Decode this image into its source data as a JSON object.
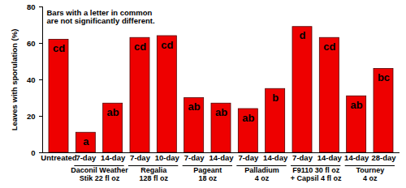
{
  "chart_data": {
    "type": "bar",
    "y_label": "Leaves with sporulation (%)",
    "annotation": "Bars with a letter in common\nare not significantly different.",
    "categories": [
      "Untreated",
      "7-day",
      "14-day",
      "7-day",
      "10-day",
      "7-day",
      "14-day",
      "7-day",
      "14-day",
      "7-day",
      "14-day",
      "14-day",
      "28-day"
    ],
    "groups": [
      null,
      "Daconil Weather\nStik 22 fl oz",
      "Daconil Weather\nStik 22 fl oz",
      "Regalia\n128 fl oz",
      "Regalia\n128 fl oz",
      "Pageant\n18 oz",
      "Pageant\n18 oz",
      "Palladium\n4 oz",
      "Palladium\n4 oz",
      "F9110 30 fl oz\n+ Capsil 4 fl oz",
      "F9110 30 fl oz\n+ Capsil 4 fl oz",
      "Tourney\n4 oz",
      "Tourney\n4 oz"
    ],
    "values": [
      62,
      11,
      27,
      63,
      64,
      30,
      27,
      24,
      35,
      69,
      63,
      31,
      46
    ],
    "letters": [
      "cd",
      "a",
      "ab",
      "cd",
      "cd",
      "ab",
      "ab",
      "ab",
      "b",
      "d",
      "cd",
      "ab",
      "bc"
    ],
    "color": "#ee0000",
    "ylim": [
      0,
      80
    ],
    "yticks": [
      0,
      20,
      40,
      60,
      80
    ],
    "grid": false
  }
}
